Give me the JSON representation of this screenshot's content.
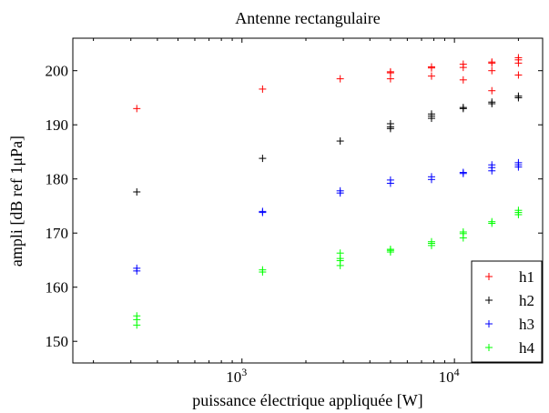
{
  "chart_data": {
    "type": "scatter",
    "title": "Antenne rectangulaire",
    "xlabel": "puissance électrique appliquée [W]",
    "ylabel": "ampli [dB ref 1μPa]",
    "x_scale": "log",
    "xlim": [
      160,
      26000
    ],
    "ylim": [
      146,
      206
    ],
    "grid": false,
    "legend_position": "bottom-right",
    "marker": "+",
    "x_ticks": [
      {
        "value": 1000,
        "base": "10",
        "exp": "3"
      },
      {
        "value": 10000,
        "base": "10",
        "exp": "4"
      }
    ],
    "y_ticks": [
      150,
      160,
      170,
      180,
      190,
      200
    ],
    "series": [
      {
        "name": "h1",
        "color": "#ff0000",
        "points": [
          [
            320,
            193
          ],
          [
            1250,
            196.6
          ],
          [
            2900,
            198.5
          ],
          [
            5000,
            198.5
          ],
          [
            5000,
            199.6
          ],
          [
            5000,
            199.8
          ],
          [
            7800,
            199
          ],
          [
            7800,
            200.5
          ],
          [
            7800,
            200.7
          ],
          [
            11000,
            198.3
          ],
          [
            11000,
            200.6
          ],
          [
            11000,
            201.2
          ],
          [
            15000,
            196.3
          ],
          [
            15000,
            200
          ],
          [
            15000,
            201.4
          ],
          [
            15000,
            201.6
          ],
          [
            20000,
            199.2
          ],
          [
            20000,
            201.4
          ],
          [
            20000,
            202
          ],
          [
            20000,
            202.4
          ]
        ]
      },
      {
        "name": "h2",
        "color": "#000000",
        "points": [
          [
            320,
            177.6
          ],
          [
            1250,
            183.8
          ],
          [
            2900,
            187
          ],
          [
            5000,
            189.3
          ],
          [
            5000,
            189.6
          ],
          [
            5000,
            190.2
          ],
          [
            7800,
            191.2
          ],
          [
            7800,
            191.6
          ],
          [
            7800,
            192
          ],
          [
            11000,
            193
          ],
          [
            11000,
            193.2
          ],
          [
            15000,
            193.9
          ],
          [
            15000,
            194.2
          ],
          [
            20000,
            195
          ],
          [
            20000,
            195.3
          ]
        ]
      },
      {
        "name": "h3",
        "color": "#0000ff",
        "points": [
          [
            320,
            163
          ],
          [
            320,
            163.5
          ],
          [
            1250,
            173.8
          ],
          [
            1250,
            174
          ],
          [
            2900,
            177.4
          ],
          [
            2900,
            177.8
          ],
          [
            5000,
            179.2
          ],
          [
            5000,
            179.8
          ],
          [
            7800,
            179.9
          ],
          [
            7800,
            180.4
          ],
          [
            11000,
            181
          ],
          [
            11000,
            181.2
          ],
          [
            15000,
            181.5
          ],
          [
            15000,
            182.1
          ],
          [
            15000,
            182.6
          ],
          [
            20000,
            182.2
          ],
          [
            20000,
            182.6
          ],
          [
            20000,
            183
          ]
        ]
      },
      {
        "name": "h4",
        "color": "#00ff00",
        "points": [
          [
            320,
            153
          ],
          [
            320,
            154
          ],
          [
            320,
            154.7
          ],
          [
            1250,
            162.8
          ],
          [
            1250,
            163.2
          ],
          [
            2900,
            164
          ],
          [
            2900,
            164.9
          ],
          [
            2900,
            165.3
          ],
          [
            2900,
            166.3
          ],
          [
            5000,
            166.5
          ],
          [
            5000,
            166.8
          ],
          [
            5000,
            167
          ],
          [
            7800,
            167.7
          ],
          [
            7800,
            168.1
          ],
          [
            7800,
            168.4
          ],
          [
            11000,
            169.1
          ],
          [
            11000,
            169.9
          ],
          [
            11000,
            170.2
          ],
          [
            15000,
            171.8
          ],
          [
            15000,
            172.1
          ],
          [
            20000,
            173.4
          ],
          [
            20000,
            173.8
          ],
          [
            20000,
            174.2
          ]
        ]
      }
    ]
  }
}
